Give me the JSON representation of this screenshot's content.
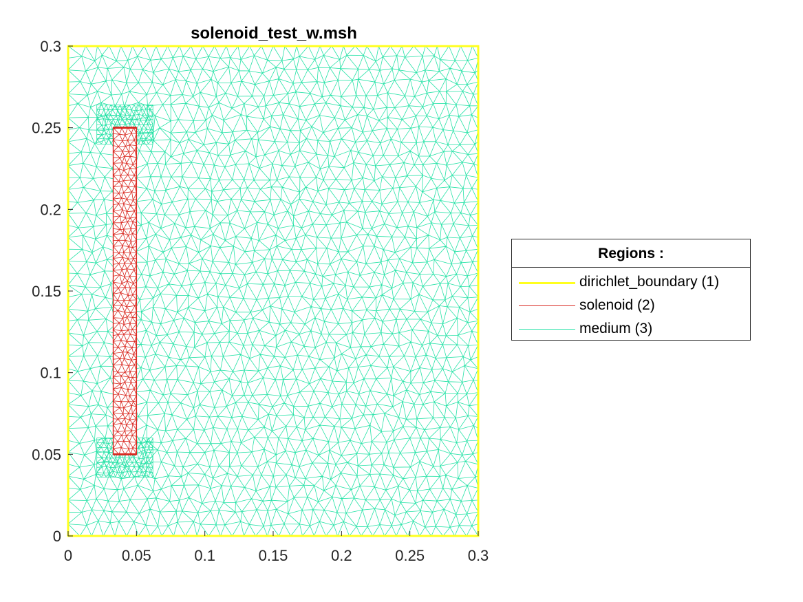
{
  "chart_data": {
    "type": "mesh",
    "title": "solenoid_test_w.msh",
    "xlabel": "",
    "ylabel": "",
    "xlim": [
      0,
      0.3
    ],
    "ylim": [
      0,
      0.3
    ],
    "xticks": [
      0,
      0.05,
      0.1,
      0.15,
      0.2,
      0.25,
      0.3
    ],
    "xtick_labels": [
      "0",
      "0.05",
      "0.1",
      "0.15",
      "0.2",
      "0.25",
      "0.3"
    ],
    "yticks": [
      0,
      0.05,
      0.1,
      0.15,
      0.2,
      0.25,
      0.3
    ],
    "ytick_labels": [
      "0",
      "0.05",
      "0.1",
      "0.15",
      "0.2",
      "0.25",
      "0.3"
    ],
    "regions": [
      {
        "name": "dirichlet_boundary (1)",
        "color": "#ffff1f",
        "kind": "boundary",
        "polygon": [
          [
            0,
            0
          ],
          [
            0.3,
            0
          ],
          [
            0.3,
            0.3
          ],
          [
            0,
            0.3
          ]
        ]
      },
      {
        "name": "solenoid (2)",
        "color": "#d9271f",
        "kind": "mesh",
        "rect": [
          [
            0.033,
            0.05
          ],
          [
            0.05,
            0.25
          ]
        ]
      },
      {
        "name": "medium (3)",
        "color": "#25e2a6",
        "kind": "mesh",
        "rect": [
          [
            0,
            0
          ],
          [
            0.3,
            0.3
          ]
        ]
      }
    ],
    "legend": {
      "title": "Regions :",
      "placement": "right"
    }
  }
}
